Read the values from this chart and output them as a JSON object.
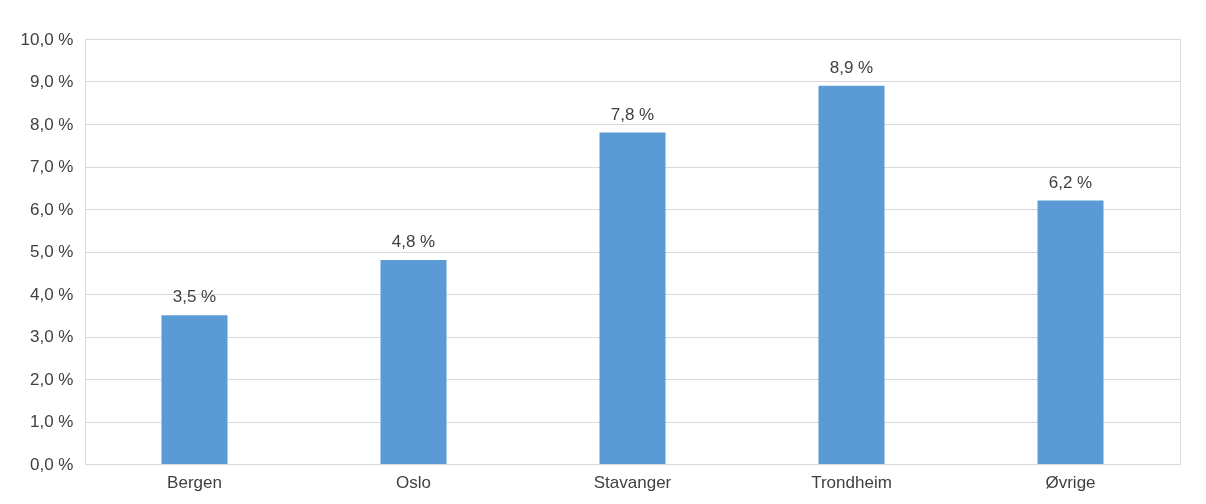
{
  "chart_data": {
    "type": "bar",
    "categories": [
      "Bergen",
      "Oslo",
      "Stavanger",
      "Trondheim",
      "Øvrige"
    ],
    "values": [
      3.5,
      4.8,
      7.8,
      8.9,
      6.2
    ],
    "value_labels": [
      "3,5 %",
      "4,8 %",
      "7,8 %",
      "8,9 %",
      "6,2 %"
    ],
    "color": "#5b9bd5",
    "ylim": [
      0,
      10
    ],
    "yticks": [
      {
        "value": 0,
        "label": "0,0 %"
      },
      {
        "value": 1,
        "label": "1,0 %"
      },
      {
        "value": 2,
        "label": "2,0 %"
      },
      {
        "value": 3,
        "label": "3,0 %"
      },
      {
        "value": 4,
        "label": "4,0 %"
      },
      {
        "value": 5,
        "label": "5,0 %"
      },
      {
        "value": 6,
        "label": "6,0 %"
      },
      {
        "value": 7,
        "label": "7,0 %"
      },
      {
        "value": 8,
        "label": "8,0 %"
      },
      {
        "value": 9,
        "label": "9,0 %"
      },
      {
        "value": 10,
        "label": "10,0 %"
      }
    ],
    "grid": "y"
  }
}
